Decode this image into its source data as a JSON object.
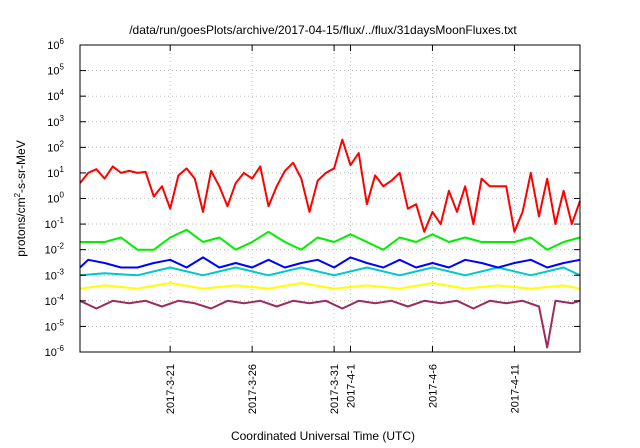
{
  "chart_data": {
    "type": "line",
    "title": "/data/run/goesPlots/archive/2017-04-15/flux/../flux/31daysMoonFluxes.txt",
    "xlabel": "Coordinated Universal Time (UTC)",
    "ylabel": "protons/cm²-s-sr-MeV",
    "ylabel_parts": {
      "pre": "protons/cm",
      "sup": "2",
      "post": "-s-sr-MeV"
    },
    "yscale": "log",
    "ylim": [
      "1e-6",
      "1e6"
    ],
    "y_ticks": [
      {
        "base": "10",
        "exp": "-6",
        "value": "1e-6"
      },
      {
        "base": "10",
        "exp": "-5",
        "value": "1e-5"
      },
      {
        "base": "10",
        "exp": "-4",
        "value": "1e-4"
      },
      {
        "base": "10",
        "exp": "-3",
        "value": "1e-3"
      },
      {
        "base": "10",
        "exp": "-2",
        "value": "1e-2"
      },
      {
        "base": "10",
        "exp": "-1",
        "value": "1e-1"
      },
      {
        "base": "10",
        "exp": "0",
        "value": "1e0"
      },
      {
        "base": "10",
        "exp": "1",
        "value": "1e1"
      },
      {
        "base": "10",
        "exp": "2",
        "value": "1e2"
      },
      {
        "base": "10",
        "exp": "3",
        "value": "1e3"
      },
      {
        "base": "10",
        "exp": "4",
        "value": "1e4"
      },
      {
        "base": "10",
        "exp": "5",
        "value": "1e5"
      },
      {
        "base": "10",
        "exp": "6",
        "value": "1e6"
      }
    ],
    "xlim": [
      "2017-03-15T12:00",
      "2017-04-15T00:00"
    ],
    "x_ticks": [
      "2017-3-21",
      "2017-3-26",
      "2017-3-31",
      "2017-4-1",
      "2017-4-6",
      "2017-4-11"
    ],
    "grid": true,
    "series": [
      {
        "color": "#ff0000",
        "points": [
          [
            "2017-03-15T12:00",
            4
          ],
          [
            "2017-03-16T00:00",
            10
          ],
          [
            "2017-03-16T12:00",
            14
          ],
          [
            "2017-03-17T00:00",
            6
          ],
          [
            "2017-03-17T12:00",
            18
          ],
          [
            "2017-03-18T00:00",
            10
          ],
          [
            "2017-03-18T12:00",
            12
          ],
          [
            "2017-03-19T00:00",
            10
          ],
          [
            "2017-03-19T12:00",
            11
          ],
          [
            "2017-03-20T00:00",
            1.2
          ],
          [
            "2017-03-20T12:00",
            3
          ],
          [
            "2017-03-21T00:00",
            0.4
          ],
          [
            "2017-03-21T12:00",
            8
          ],
          [
            "2017-03-22T00:00",
            15
          ],
          [
            "2017-03-22T12:00",
            6
          ],
          [
            "2017-03-23T00:00",
            0.3
          ],
          [
            "2017-03-23T12:00",
            12
          ],
          [
            "2017-03-24T00:00",
            3
          ],
          [
            "2017-03-24T12:00",
            0.5
          ],
          [
            "2017-03-25T00:00",
            4
          ],
          [
            "2017-03-25T12:00",
            10
          ],
          [
            "2017-03-26T00:00",
            6
          ],
          [
            "2017-03-26T12:00",
            18
          ],
          [
            "2017-03-27T00:00",
            0.5
          ],
          [
            "2017-03-27T12:00",
            3
          ],
          [
            "2017-03-28T00:00",
            12
          ],
          [
            "2017-03-28T12:00",
            25
          ],
          [
            "2017-03-29T00:00",
            6
          ],
          [
            "2017-03-29T12:00",
            0.3
          ],
          [
            "2017-03-30T00:00",
            5
          ],
          [
            "2017-03-30T12:00",
            10
          ],
          [
            "2017-03-31T00:00",
            15
          ],
          [
            "2017-03-31T12:00",
            200
          ],
          [
            "2017-04-01T00:00",
            20
          ],
          [
            "2017-04-01T12:00",
            60
          ],
          [
            "2017-04-02T00:00",
            0.6
          ],
          [
            "2017-04-02T12:00",
            8
          ],
          [
            "2017-04-03T00:00",
            3
          ],
          [
            "2017-04-03T12:00",
            5
          ],
          [
            "2017-04-04T00:00",
            10
          ],
          [
            "2017-04-04T12:00",
            0.4
          ],
          [
            "2017-04-05T00:00",
            0.6
          ],
          [
            "2017-04-05T12:00",
            0.05
          ],
          [
            "2017-04-06T00:00",
            0.3
          ],
          [
            "2017-04-06T12:00",
            0.1
          ],
          [
            "2017-04-07T00:00",
            2
          ],
          [
            "2017-04-07T12:00",
            0.3
          ],
          [
            "2017-04-08T00:00",
            3
          ],
          [
            "2017-04-08T12:00",
            0.1
          ],
          [
            "2017-04-09T00:00",
            6
          ],
          [
            "2017-04-09T12:00",
            3
          ],
          [
            "2017-04-10T00:00",
            3
          ],
          [
            "2017-04-10T12:00",
            3
          ],
          [
            "2017-04-11T00:00",
            0.05
          ],
          [
            "2017-04-11T12:00",
            0.3
          ],
          [
            "2017-04-12T00:00",
            10
          ],
          [
            "2017-04-12T12:00",
            0.2
          ],
          [
            "2017-04-13T00:00",
            6
          ],
          [
            "2017-04-13T12:00",
            0.1
          ],
          [
            "2017-04-14T00:00",
            2
          ],
          [
            "2017-04-14T12:00",
            0.1
          ],
          [
            "2017-04-15T00:00",
            0.8
          ]
        ]
      },
      {
        "color": "#00ee00",
        "points": [
          [
            "2017-03-15T12:00",
            0.02
          ],
          [
            "2017-03-17T00:00",
            0.02
          ],
          [
            "2017-03-18T00:00",
            0.03
          ],
          [
            "2017-03-19T00:00",
            0.01
          ],
          [
            "2017-03-20T00:00",
            0.01
          ],
          [
            "2017-03-21T00:00",
            0.03
          ],
          [
            "2017-03-22T00:00",
            0.06
          ],
          [
            "2017-03-23T00:00",
            0.02
          ],
          [
            "2017-03-24T00:00",
            0.03
          ],
          [
            "2017-03-25T00:00",
            0.01
          ],
          [
            "2017-03-26T00:00",
            0.02
          ],
          [
            "2017-03-27T00:00",
            0.05
          ],
          [
            "2017-03-28T00:00",
            0.02
          ],
          [
            "2017-03-29T00:00",
            0.01
          ],
          [
            "2017-03-30T00:00",
            0.03
          ],
          [
            "2017-03-31T00:00",
            0.02
          ],
          [
            "2017-04-01T00:00",
            0.04
          ],
          [
            "2017-04-02T00:00",
            0.02
          ],
          [
            "2017-04-03T00:00",
            0.01
          ],
          [
            "2017-04-04T00:00",
            0.03
          ],
          [
            "2017-04-05T00:00",
            0.02
          ],
          [
            "2017-04-06T00:00",
            0.04
          ],
          [
            "2017-04-07T00:00",
            0.02
          ],
          [
            "2017-04-08T00:00",
            0.03
          ],
          [
            "2017-04-09T00:00",
            0.02
          ],
          [
            "2017-04-10T00:00",
            0.02
          ],
          [
            "2017-04-11T00:00",
            0.02
          ],
          [
            "2017-04-12T00:00",
            0.03
          ],
          [
            "2017-04-13T00:00",
            0.01
          ],
          [
            "2017-04-14T00:00",
            0.02
          ],
          [
            "2017-04-15T00:00",
            0.03
          ]
        ]
      },
      {
        "color": "#00c8c8",
        "points": [
          [
            "2017-03-15T12:00",
            0.001
          ],
          [
            "2017-03-17T00:00",
            0.0012
          ],
          [
            "2017-03-19T00:00",
            0.001
          ],
          [
            "2017-03-21T00:00",
            0.002
          ],
          [
            "2017-03-23T00:00",
            0.001
          ],
          [
            "2017-03-25T00:00",
            0.002
          ],
          [
            "2017-03-27T00:00",
            0.001
          ],
          [
            "2017-03-29T00:00",
            0.002
          ],
          [
            "2017-03-31T00:00",
            0.001
          ],
          [
            "2017-04-02T00:00",
            0.002
          ],
          [
            "2017-04-04T00:00",
            0.001
          ],
          [
            "2017-04-06T00:00",
            0.002
          ],
          [
            "2017-04-08T00:00",
            0.001
          ],
          [
            "2017-04-10T00:00",
            0.002
          ],
          [
            "2017-04-12T00:00",
            0.001
          ],
          [
            "2017-04-14T00:00",
            0.002
          ],
          [
            "2017-04-15T00:00",
            0.001
          ]
        ]
      },
      {
        "color": "#0000ff",
        "points": [
          [
            "2017-03-15T12:00",
            0.002
          ],
          [
            "2017-03-16T00:00",
            0.004
          ],
          [
            "2017-03-17T00:00",
            0.003
          ],
          [
            "2017-03-18T00:00",
            0.002
          ],
          [
            "2017-03-19T00:00",
            0.002
          ],
          [
            "2017-03-20T00:00",
            0.003
          ],
          [
            "2017-03-21T00:00",
            0.004
          ],
          [
            "2017-03-22T00:00",
            0.002
          ],
          [
            "2017-03-23T00:00",
            0.005
          ],
          [
            "2017-03-24T00:00",
            0.002
          ],
          [
            "2017-03-25T00:00",
            0.003
          ],
          [
            "2017-03-26T00:00",
            0.002
          ],
          [
            "2017-03-27T00:00",
            0.004
          ],
          [
            "2017-03-28T00:00",
            0.002
          ],
          [
            "2017-03-29T00:00",
            0.003
          ],
          [
            "2017-03-30T00:00",
            0.004
          ],
          [
            "2017-03-31T00:00",
            0.002
          ],
          [
            "2017-04-01T00:00",
            0.005
          ],
          [
            "2017-04-02T00:00",
            0.003
          ],
          [
            "2017-04-03T00:00",
            0.002
          ],
          [
            "2017-04-04T00:00",
            0.004
          ],
          [
            "2017-04-05T00:00",
            0.002
          ],
          [
            "2017-04-06T00:00",
            0.003
          ],
          [
            "2017-04-07T00:00",
            0.002
          ],
          [
            "2017-04-08T00:00",
            0.004
          ],
          [
            "2017-04-09T00:00",
            0.003
          ],
          [
            "2017-04-10T00:00",
            0.002
          ],
          [
            "2017-04-11T00:00",
            0.003
          ],
          [
            "2017-04-12T00:00",
            0.004
          ],
          [
            "2017-04-13T00:00",
            0.002
          ],
          [
            "2017-04-14T00:00",
            0.003
          ],
          [
            "2017-04-15T00:00",
            0.004
          ]
        ]
      },
      {
        "color": "#ffff00",
        "points": [
          [
            "2017-03-15T12:00",
            0.0003
          ],
          [
            "2017-03-17T00:00",
            0.0004
          ],
          [
            "2017-03-19T00:00",
            0.0003
          ],
          [
            "2017-03-21T00:00",
            0.0005
          ],
          [
            "2017-03-23T00:00",
            0.0003
          ],
          [
            "2017-03-25T00:00",
            0.0004
          ],
          [
            "2017-03-27T00:00",
            0.0003
          ],
          [
            "2017-03-29T00:00",
            0.0005
          ],
          [
            "2017-03-31T00:00",
            0.0003
          ],
          [
            "2017-04-02T00:00",
            0.0004
          ],
          [
            "2017-04-04T00:00",
            0.0003
          ],
          [
            "2017-04-06T00:00",
            0.0005
          ],
          [
            "2017-04-08T00:00",
            0.0003
          ],
          [
            "2017-04-10T00:00",
            0.0004
          ],
          [
            "2017-04-12T00:00",
            0.0003
          ],
          [
            "2017-04-14T00:00",
            0.0004
          ],
          [
            "2017-04-15T00:00",
            0.0003
          ]
        ]
      },
      {
        "color": "#9b2d5e",
        "points": [
          [
            "2017-03-15T12:00",
            0.0001
          ],
          [
            "2017-03-16T12:00",
            5e-05
          ],
          [
            "2017-03-17T12:00",
            0.0001
          ],
          [
            "2017-03-18T12:00",
            8e-05
          ],
          [
            "2017-03-19T12:00",
            0.0001
          ],
          [
            "2017-03-20T12:00",
            6e-05
          ],
          [
            "2017-03-21T12:00",
            0.0001
          ],
          [
            "2017-03-22T12:00",
            8e-05
          ],
          [
            "2017-03-23T12:00",
            5e-05
          ],
          [
            "2017-03-24T12:00",
            0.0001
          ],
          [
            "2017-03-25T12:00",
            8e-05
          ],
          [
            "2017-03-26T12:00",
            0.0001
          ],
          [
            "2017-03-27T12:00",
            6e-05
          ],
          [
            "2017-03-28T12:00",
            0.0001
          ],
          [
            "2017-03-29T12:00",
            8e-05
          ],
          [
            "2017-03-30T12:00",
            0.0001
          ],
          [
            "2017-03-31T12:00",
            5e-05
          ],
          [
            "2017-04-01T12:00",
            0.0001
          ],
          [
            "2017-04-02T12:00",
            8e-05
          ],
          [
            "2017-04-03T12:00",
            0.0001
          ],
          [
            "2017-04-04T12:00",
            6e-05
          ],
          [
            "2017-04-05T12:00",
            0.0001
          ],
          [
            "2017-04-06T12:00",
            8e-05
          ],
          [
            "2017-04-07T12:00",
            0.0001
          ],
          [
            "2017-04-08T12:00",
            5e-05
          ],
          [
            "2017-04-09T12:00",
            0.0001
          ],
          [
            "2017-04-10T12:00",
            8e-05
          ],
          [
            "2017-04-11T12:00",
            0.0001
          ],
          [
            "2017-04-12T12:00",
            6e-05
          ],
          [
            "2017-04-13T00:00",
            1.5e-06
          ],
          [
            "2017-04-13T12:00",
            0.0001
          ],
          [
            "2017-04-14T12:00",
            8e-05
          ],
          [
            "2017-04-15T00:00",
            0.0001
          ]
        ]
      }
    ]
  }
}
